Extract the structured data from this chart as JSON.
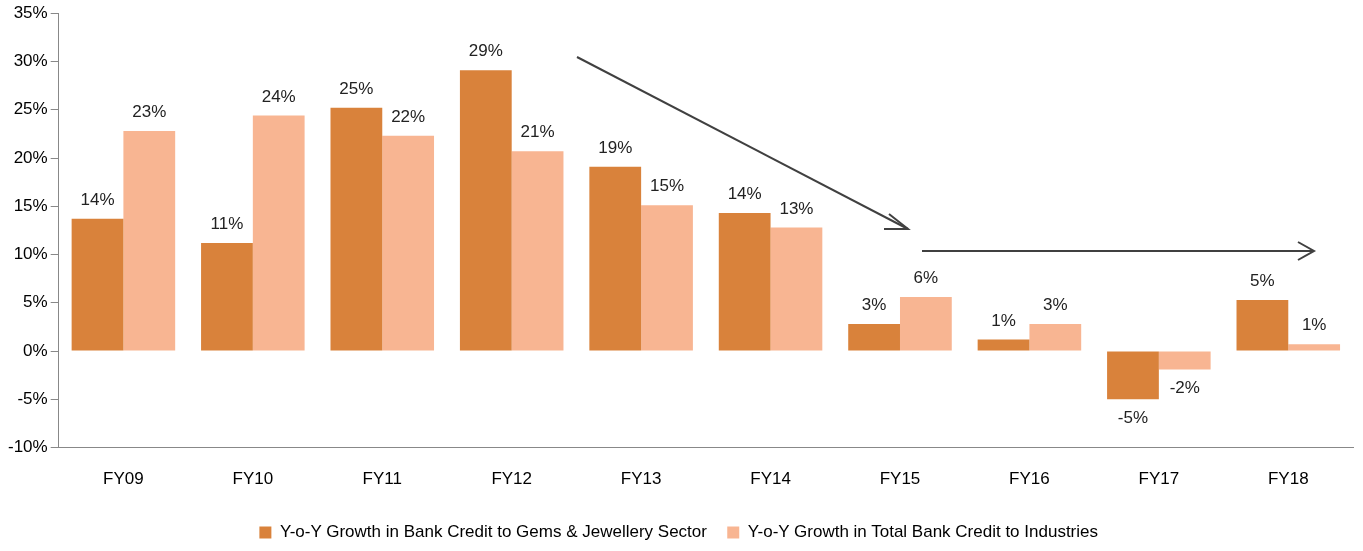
{
  "chart_data": {
    "type": "bar",
    "categories": [
      "FY09",
      "FY10",
      "FY11",
      "FY12",
      "FY13",
      "FY14",
      "FY15",
      "FY16",
      "FY17",
      "FY18"
    ],
    "series": [
      {
        "name": "Y-o-Y Growth in Bank Credit to Gems & Jewellery Sector",
        "color": "#d9823b",
        "values": [
          13.7,
          11.2,
          25.2,
          29.1,
          19.1,
          14.3,
          2.8,
          1.2,
          -5.0,
          5.3
        ],
        "value_labels": [
          "14%",
          "11%",
          "25%",
          "29%",
          "19%",
          "14%",
          "3%",
          "1%",
          "-5%",
          "5%"
        ]
      },
      {
        "name": "Y-o-Y Growth in Total Bank Credit to Industries",
        "color": "#f8b592",
        "values": [
          22.8,
          24.4,
          22.3,
          20.7,
          15.1,
          12.8,
          5.6,
          2.8,
          -1.9,
          0.7
        ],
        "value_labels": [
          "23%",
          "24%",
          "22%",
          "21%",
          "15%",
          "13%",
          "6%",
          "3%",
          "-2%",
          "1%"
        ]
      }
    ],
    "ylim": [
      -10,
      35
    ],
    "yticks": [
      {
        "value": -10,
        "label": "-10%"
      },
      {
        "value": -5,
        "label": "-5%"
      },
      {
        "value": 0,
        "label": "0%"
      },
      {
        "value": 5,
        "label": "5%"
      },
      {
        "value": 10,
        "label": "10%"
      },
      {
        "value": 15,
        "label": "15%"
      },
      {
        "value": 20,
        "label": "20%"
      },
      {
        "value": 25,
        "label": "25%"
      },
      {
        "value": 30,
        "label": "30%"
      },
      {
        "value": 35,
        "label": "35%"
      }
    ],
    "grid": false,
    "legend": "bottom"
  }
}
